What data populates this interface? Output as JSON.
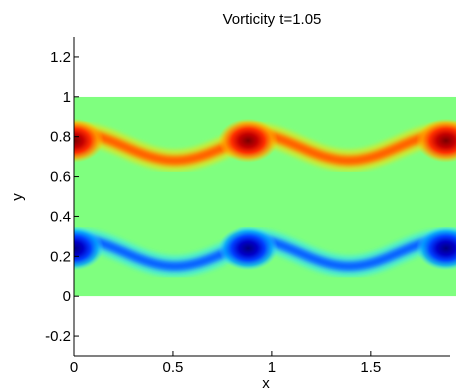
{
  "chart_data": {
    "type": "heatmap",
    "title": "Vorticity  t=1.05",
    "xlabel": "x",
    "ylabel": "y",
    "xlim": [
      0,
      1.9
    ],
    "ylim": [
      -0.3,
      1.3
    ],
    "x_ticks": [
      0,
      0.5,
      1,
      1.5
    ],
    "x_tick_labels": [
      "0",
      "0.5",
      "1",
      "1.5"
    ],
    "y_ticks": [
      -0.2,
      0,
      0.2,
      0.4,
      0.6,
      0.8,
      1,
      1.2
    ],
    "y_tick_labels": [
      "-0.2",
      "0",
      "0.2",
      "0.4",
      "0.6",
      "0.8",
      "1",
      "1.2"
    ],
    "field_extent": {
      "x": [
        0,
        1.9
      ],
      "y": [
        0,
        1
      ]
    },
    "colormap": "jet",
    "background_color": "#7fff7f",
    "upper_shear_layer": {
      "sign": "positive",
      "centerline_y": 0.75,
      "amplitude": 0.07,
      "wavelength": 1.0,
      "vortex_cores": [
        {
          "x": 0.0,
          "y": 0.78
        },
        {
          "x": 0.88,
          "y": 0.78
        },
        {
          "x": 1.88,
          "y": 0.78
        }
      ],
      "core_color": "#8b0000",
      "sheet_color": "#ff8c00"
    },
    "lower_shear_layer": {
      "sign": "negative",
      "centerline_y": 0.22,
      "amplitude": 0.07,
      "wavelength": 1.0,
      "vortex_cores": [
        {
          "x": 0.0,
          "y": 0.24
        },
        {
          "x": 0.88,
          "y": 0.24
        },
        {
          "x": 1.88,
          "y": 0.24
        }
      ],
      "core_color": "#00008b",
      "sheet_color": "#1e90ff"
    }
  }
}
